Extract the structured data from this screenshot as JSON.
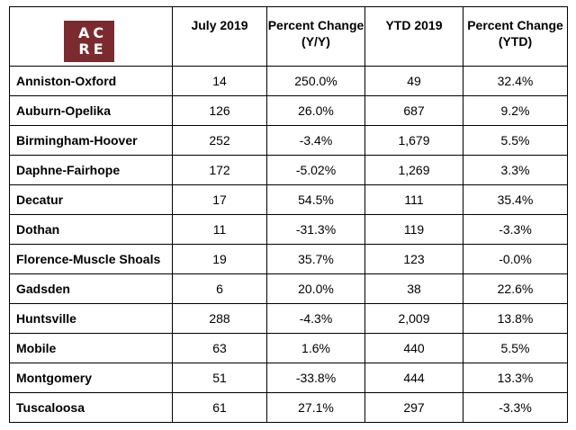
{
  "logo": {
    "line1": "AC",
    "line2": "RE",
    "color": "#7b2b2f"
  },
  "headers": [
    "July 2019",
    "Percent Change (Y/Y)",
    "YTD 2019",
    "Percent Change (YTD)"
  ],
  "rows": [
    [
      "Anniston-Oxford",
      "14",
      "250.0%",
      "49",
      "32.4%"
    ],
    [
      "Auburn-Opelika",
      "126",
      "26.0%",
      "687",
      "9.2%"
    ],
    [
      "Birmingham-Hoover",
      "252",
      "-3.4%",
      "1,679",
      "5.5%"
    ],
    [
      "Daphne-Fairhope",
      "172",
      "-5.02%",
      "1,269",
      "3.3%"
    ],
    [
      "Decatur",
      "17",
      "54.5%",
      "111",
      "35.4%"
    ],
    [
      "Dothan",
      "11",
      "-31.3%",
      "119",
      "-3.3%"
    ],
    [
      "Florence-Muscle Shoals",
      "19",
      "35.7%",
      "123",
      "-0.0%"
    ],
    [
      "Gadsden",
      "6",
      "20.0%",
      "38",
      "22.6%"
    ],
    [
      "Huntsville",
      "288",
      "-4.3%",
      "2,009",
      "13.8%"
    ],
    [
      "Mobile",
      "63",
      "1.6%",
      "440",
      "5.5%"
    ],
    [
      "Montgomery",
      "51",
      "-33.8%",
      "444",
      "13.3%"
    ],
    [
      "Tuscaloosa",
      "61",
      "27.1%",
      "297",
      "-3.3%"
    ]
  ]
}
